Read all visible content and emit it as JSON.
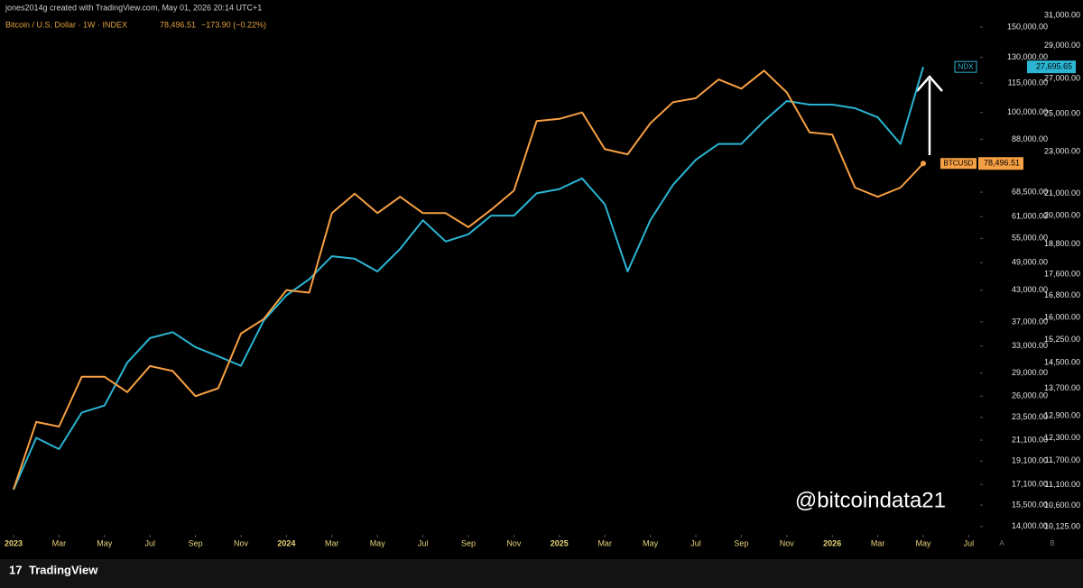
{
  "header": "jones2014g created with TradingView.com, May 01, 2026 20:14 UTC+1",
  "footer": {
    "brand": "TradingView"
  },
  "watermark": "@bitcoindata21",
  "scale_buttons": [
    "A",
    "B"
  ],
  "chart_data": {
    "type": "line",
    "title": "Bitcoin / U.S. Dollar · 1W · INDEX",
    "legend_price": "78,496.51",
    "legend_change": "−173.90 (−0.22%)",
    "log_scale": true,
    "grid": false,
    "x": [
      "2023-01",
      "2023-02",
      "2023-03",
      "2023-04",
      "2023-05",
      "2023-06",
      "2023-07",
      "2023-08",
      "2023-09",
      "2023-10",
      "2023-11",
      "2023-12",
      "2024-01",
      "2024-02",
      "2024-03",
      "2024-04",
      "2024-05",
      "2024-06",
      "2024-07",
      "2024-08",
      "2024-09",
      "2024-10",
      "2024-11",
      "2024-12",
      "2025-01",
      "2025-02",
      "2025-03",
      "2025-04",
      "2025-05",
      "2025-06",
      "2025-07",
      "2025-08",
      "2025-09",
      "2025-10",
      "2025-11",
      "2025-12",
      "2026-01",
      "2026-02",
      "2026-03",
      "2026-04",
      "2026-05"
    ],
    "xticks": [
      {
        "value": "2023-01",
        "label": "2023"
      },
      {
        "value": "2023-03",
        "label": "Mar"
      },
      {
        "value": "2023-05",
        "label": "May"
      },
      {
        "value": "2023-07",
        "label": "Jul"
      },
      {
        "value": "2023-09",
        "label": "Sep"
      },
      {
        "value": "2023-11",
        "label": "Nov"
      },
      {
        "value": "2024-01",
        "label": "2024"
      },
      {
        "value": "2024-03",
        "label": "Mar"
      },
      {
        "value": "2024-05",
        "label": "May"
      },
      {
        "value": "2024-07",
        "label": "Jul"
      },
      {
        "value": "2024-09",
        "label": "Sep"
      },
      {
        "value": "2024-11",
        "label": "Nov"
      },
      {
        "value": "2025-01",
        "label": "2025"
      },
      {
        "value": "2025-03",
        "label": "Mar"
      },
      {
        "value": "2025-05",
        "label": "May"
      },
      {
        "value": "2025-07",
        "label": "Jul"
      },
      {
        "value": "2025-09",
        "label": "Sep"
      },
      {
        "value": "2025-11",
        "label": "Nov"
      },
      {
        "value": "2026-01",
        "label": "2026"
      },
      {
        "value": "2026-03",
        "label": "Mar"
      },
      {
        "value": "2026-05",
        "label": "May"
      },
      {
        "value": "2026-07",
        "label": "Jul"
      }
    ],
    "ylim": [
      13460,
      170600
    ],
    "yticks": [
      {
        "value": 150000,
        "label": "150,000.00"
      },
      {
        "value": 130000,
        "label": "130,000.00"
      },
      {
        "value": 115000,
        "label": "115,000.00"
      },
      {
        "value": 100000,
        "label": "100,000.00"
      },
      {
        "value": 88000,
        "label": "88,000.00"
      },
      {
        "value": 68500,
        "label": "68,500.00"
      },
      {
        "value": 61000,
        "label": "61,000.00"
      },
      {
        "value": 55000,
        "label": "55,000.00"
      },
      {
        "value": 49000,
        "label": "49,000.00"
      },
      {
        "value": 43000,
        "label": "43,000.00"
      },
      {
        "value": 37000,
        "label": "37,000.00"
      },
      {
        "value": 33000,
        "label": "33,000.00"
      },
      {
        "value": 29000,
        "label": "29,000.00"
      },
      {
        "value": 26000,
        "label": "26,000.00"
      },
      {
        "value": 23500,
        "label": "23,500.00"
      },
      {
        "value": 21100,
        "label": "21,100.00"
      },
      {
        "value": 19100,
        "label": "19,100.00"
      },
      {
        "value": 17100,
        "label": "17,100.00"
      },
      {
        "value": 15500,
        "label": "15,500.00"
      },
      {
        "value": 14000,
        "label": "14,000.00"
      }
    ],
    "y2lim": [
      9948,
      32060
    ],
    "y2ticks": [
      {
        "value": 31000,
        "label": "31,000.00"
      },
      {
        "value": 29000,
        "label": "29,000.00"
      },
      {
        "value": 27000,
        "label": "27,000.00"
      },
      {
        "value": 25000,
        "label": "25,000.00"
      },
      {
        "value": 23000,
        "label": "23,000.00"
      },
      {
        "value": 21000,
        "label": "21,000.00"
      },
      {
        "value": 20000,
        "label": "20,000.00"
      },
      {
        "value": 18800,
        "label": "18,800.00"
      },
      {
        "value": 17600,
        "label": "17,600.00"
      },
      {
        "value": 16800,
        "label": "16,800.00"
      },
      {
        "value": 16000,
        "label": "16,000.00"
      },
      {
        "value": 15250,
        "label": "15,250.00"
      },
      {
        "value": 14500,
        "label": "14,500.00"
      },
      {
        "value": 13700,
        "label": "13,700.00"
      },
      {
        "value": 12900,
        "label": "12,900.00"
      },
      {
        "value": 12300,
        "label": "12,300.00"
      },
      {
        "value": 11700,
        "label": "11,700.00"
      },
      {
        "value": 11100,
        "label": "11,100.00"
      },
      {
        "value": 10600,
        "label": "10,600.00"
      },
      {
        "value": 10125,
        "label": "10,125.00"
      }
    ],
    "series": [
      {
        "name": "NDX",
        "color": "#2bb5d3",
        "axis": "y2",
        "values": [
          10980,
          12300,
          12000,
          13000,
          13200,
          14500,
          15300,
          15500,
          15000,
          14700,
          14400,
          15900,
          16800,
          17400,
          18300,
          18200,
          17700,
          18600,
          19800,
          18900,
          19200,
          20000,
          20000,
          21000,
          21200,
          21700,
          20500,
          17700,
          19800,
          21400,
          22600,
          23400,
          23400,
          24600,
          25700,
          25500,
          25500,
          25300,
          24800,
          23400,
          27695.65
        ],
        "value_labels": [
          null,
          null,
          null,
          null,
          null,
          null,
          null,
          null,
          null,
          null,
          null,
          null,
          null,
          null,
          null,
          null,
          null,
          null,
          null,
          null,
          null,
          null,
          null,
          null,
          null,
          null,
          null,
          null,
          null,
          null,
          null,
          null,
          null,
          null,
          null,
          null,
          null,
          null,
          null,
          null,
          "27,695.65"
        ]
      },
      {
        "name": "BTCUSD",
        "color": "#f7a043",
        "values": [
          16700,
          23000,
          22500,
          28500,
          28500,
          26500,
          30000,
          29300,
          26000,
          27000,
          35000,
          37500,
          43000,
          42500,
          62000,
          68000,
          62000,
          67000,
          62000,
          62000,
          58000,
          63000,
          69000,
          96000,
          97000,
          100000,
          84000,
          82000,
          95000,
          105000,
          107000,
          117000,
          112000,
          122000,
          110000,
          91000,
          90000,
          70000,
          67000,
          70000,
          78496.51
        ],
        "value_labels": [
          null,
          null,
          null,
          null,
          null,
          null,
          null,
          null,
          null,
          null,
          null,
          null,
          null,
          null,
          null,
          null,
          null,
          null,
          null,
          null,
          null,
          null,
          null,
          null,
          null,
          null,
          null,
          null,
          null,
          null,
          null,
          null,
          null,
          null,
          null,
          null,
          null,
          null,
          null,
          null,
          "78,496.51"
        ]
      }
    ]
  }
}
